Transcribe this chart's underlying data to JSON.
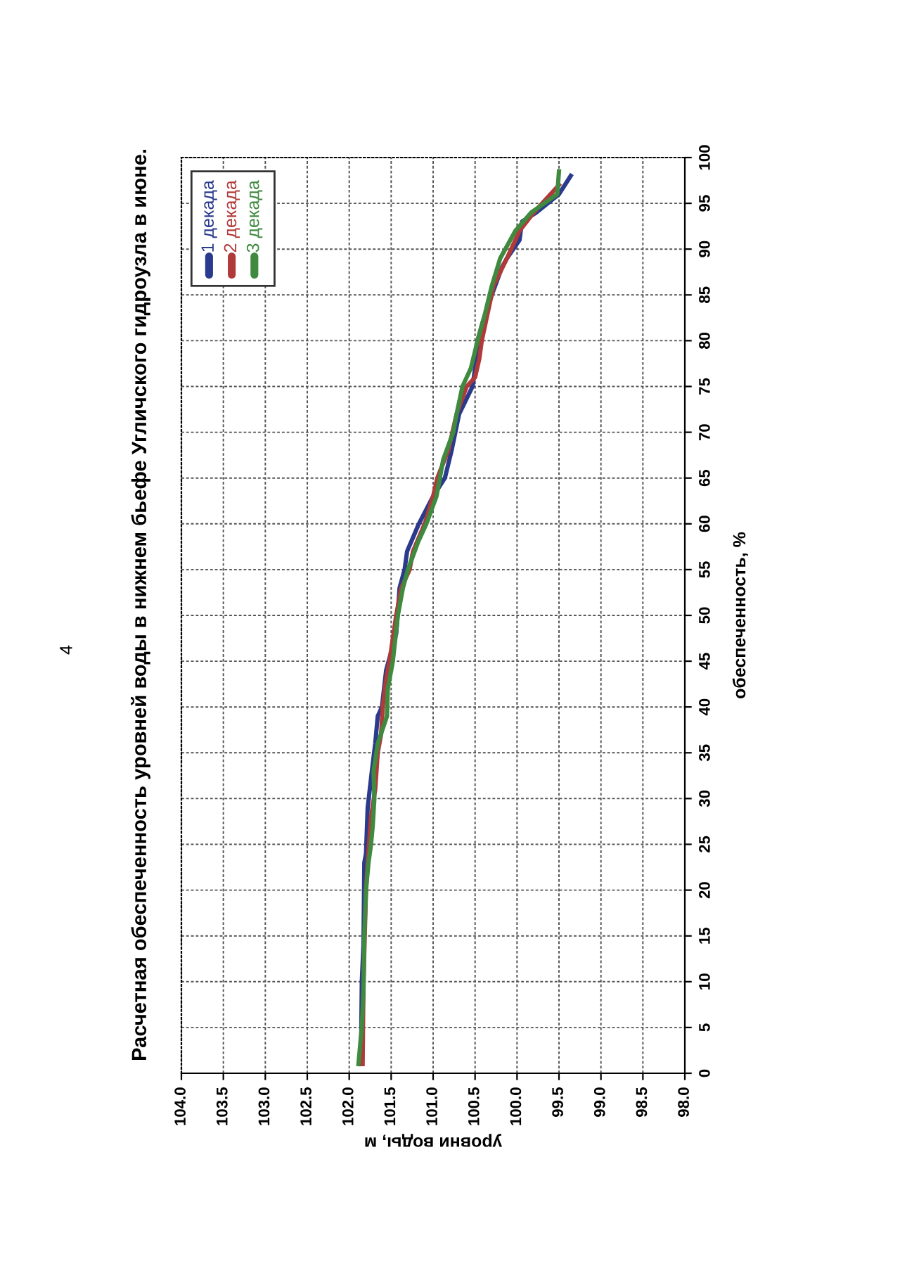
{
  "chart_data": {
    "type": "line",
    "title": "Расчетная обеспеченность уровней воды в нижнем бьефе Угличского гидроузла в июне.",
    "xlabel": "уровни воды, м",
    "ylabel": "обеспеченность, %",
    "annotations": [
      "4"
    ],
    "ylim": [
      0,
      100
    ],
    "yticks": [
      0,
      5,
      10,
      15,
      20,
      25,
      30,
      35,
      40,
      45,
      50,
      55,
      60,
      65,
      70,
      75,
      80,
      85,
      90,
      95,
      100
    ],
    "xlim": [
      104.0,
      98.0
    ],
    "xticks": [
      {
        "value": 104.0,
        "label": "104.0"
      },
      {
        "value": 103.5,
        "label": "103.5"
      },
      {
        "value": 103.0,
        "label": "103.0"
      },
      {
        "value": 102.5,
        "label": "102.5"
      },
      {
        "value": 102.0,
        "label": "102.0"
      },
      {
        "value": 101.5,
        "label": "101.5"
      },
      {
        "value": 101.0,
        "label": "101.0"
      },
      {
        "value": 100.5,
        "label": "100.5"
      },
      {
        "value": 100.0,
        "label": "100.0"
      },
      {
        "value": 99.5,
        "label": "99.5"
      },
      {
        "value": 99.0,
        "label": "99.0"
      },
      {
        "value": 98.5,
        "label": "98.5"
      },
      {
        "value": 98.0,
        "label": "98.0"
      }
    ],
    "grid": true,
    "legend": "top left",
    "line_style": "solid",
    "series": [
      {
        "name": "1 декада",
        "color": "#2a3a8c",
        "values": [
          1,
          10,
          14,
          23,
          24,
          29,
          33,
          36,
          39,
          40,
          44,
          48,
          53,
          55,
          57,
          60,
          63,
          65,
          68,
          72,
          75,
          77,
          80,
          82,
          85,
          88,
          89,
          91,
          93,
          94,
          96,
          98
        ],
        "x": [
          101.86,
          101.85,
          101.83,
          101.82,
          101.8,
          101.78,
          101.73,
          101.69,
          101.66,
          101.61,
          101.56,
          101.44,
          101.4,
          101.34,
          101.31,
          101.17,
          101.0,
          100.86,
          100.78,
          100.69,
          100.53,
          100.5,
          100.47,
          100.41,
          100.3,
          100.18,
          100.12,
          99.97,
          99.94,
          99.77,
          99.5,
          99.36
        ]
      },
      {
        "name": "2 декада",
        "color": "#b03a3a",
        "values": [
          1,
          10,
          20,
          23,
          28,
          31,
          35,
          37,
          40,
          43,
          45,
          50,
          53,
          55,
          57,
          60,
          63,
          65,
          68,
          72,
          75,
          76,
          78,
          80,
          83,
          86,
          89,
          92,
          94,
          96,
          97
        ],
        "x": [
          101.84,
          101.83,
          101.8,
          101.78,
          101.74,
          101.69,
          101.66,
          101.62,
          101.6,
          101.56,
          101.52,
          101.44,
          101.38,
          101.28,
          101.24,
          101.1,
          101.0,
          100.95,
          100.82,
          100.72,
          100.6,
          100.5,
          100.45,
          100.42,
          100.35,
          100.28,
          100.12,
          99.97,
          99.8,
          99.6,
          99.5
        ]
      },
      {
        "name": "3 декада",
        "color": "#3f8a3f",
        "values": [
          1,
          5,
          9,
          15,
          20,
          23,
          25,
          27,
          30,
          33,
          36,
          39,
          42,
          45,
          50,
          53,
          55,
          58,
          60,
          63,
          65,
          67,
          70,
          72,
          75,
          77,
          80,
          83,
          86,
          89,
          92,
          94,
          96,
          98.5
        ],
        "x": [
          101.89,
          101.85,
          101.83,
          101.82,
          101.8,
          101.77,
          101.74,
          101.72,
          101.7,
          101.71,
          101.66,
          101.55,
          101.54,
          101.48,
          101.42,
          101.36,
          101.3,
          101.18,
          101.08,
          100.96,
          100.92,
          100.88,
          100.76,
          100.72,
          100.65,
          100.55,
          100.47,
          100.38,
          100.3,
          100.2,
          100.02,
          99.83,
          99.52,
          99.5
        ]
      }
    ]
  }
}
